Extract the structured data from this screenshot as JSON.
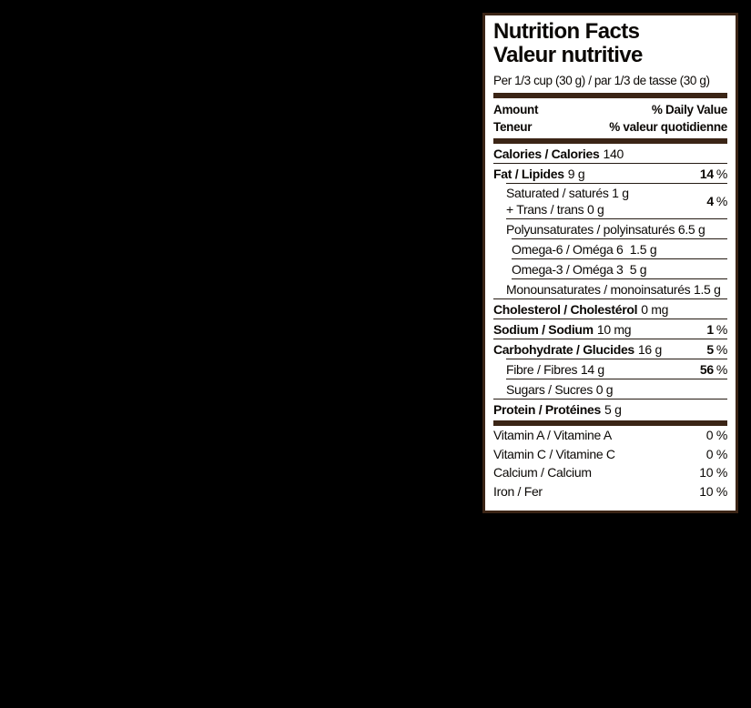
{
  "label": {
    "title_en": "Nutrition Facts",
    "title_fr": "Valeur nutritive",
    "serving": "Per 1/3 cup (30 g) / par 1/3 de tasse (30 g)",
    "percent_sign": "%",
    "header": {
      "amount_en": "Amount",
      "dv_en": "% Daily Value",
      "amount_fr": "Teneur",
      "dv_fr": "% valeur quotidienne"
    },
    "rows": {
      "calories": {
        "bold": "Calories / Calories",
        "value": "140"
      },
      "fat": {
        "bold": "Fat / Lipides",
        "value": "9 g",
        "pct": "14"
      },
      "saturated": {
        "line1": "Saturated / saturés 1 g",
        "line2": "+ Trans / trans 0 g",
        "pct": "4"
      },
      "polyunsaturates": {
        "text": "Polyunsaturates / polyinsaturés 6.5 g"
      },
      "omega6": {
        "text": "Omega-6 / Oméga 6  1.5 g"
      },
      "omega3": {
        "text": "Omega-3 / Oméga 3  5 g"
      },
      "monounsaturates": {
        "text": "Monounsaturates / monoinsaturés 1.5 g"
      },
      "cholesterol": {
        "bold": "Cholesterol / Cholestérol",
        "value": "0 mg"
      },
      "sodium": {
        "bold": "Sodium / Sodium",
        "value": "10 mg",
        "pct": "1"
      },
      "carbohydrate": {
        "bold": "Carbohydrate / Glucides",
        "value": "16 g",
        "pct": "5"
      },
      "fibre": {
        "text": "Fibre / Fibres 14 g",
        "pct": "56"
      },
      "sugars": {
        "text": "Sugars / Sucres 0 g"
      },
      "protein": {
        "bold": "Protein / Protéines",
        "value": "5 g"
      }
    },
    "vitamins": [
      {
        "name": "Vitamin A / Vitamine A",
        "pct": "0 %"
      },
      {
        "name": "Vitamin C / Vitamine C",
        "pct": "0 %"
      },
      {
        "name": "Calcium / Calcium",
        "pct": "10 %"
      },
      {
        "name": "Iron / Fer",
        "pct": "10 %"
      }
    ],
    "colors": {
      "background": "#000000",
      "label_bg": "#ffffff",
      "bar_brown": "#3b2516",
      "thin_rule": "#241a12",
      "text": "#0b0805"
    }
  }
}
